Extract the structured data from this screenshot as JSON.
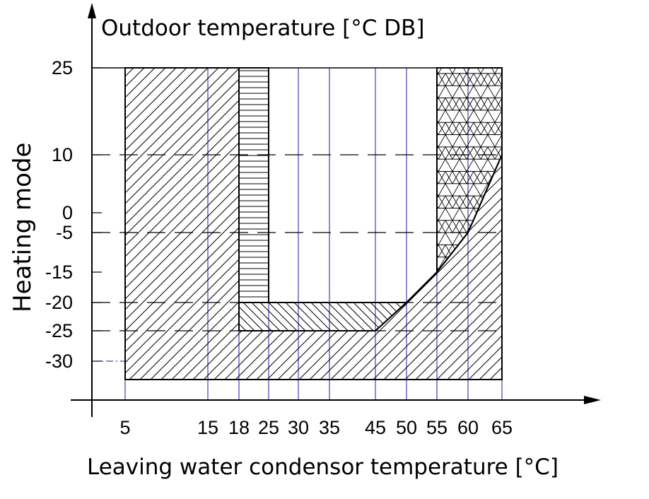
{
  "diagram": {
    "y_axis_title": "Outdoor temperature [°C DB]",
    "x_axis_title": "Leaving water condensor temperature [°C]",
    "mode_label": "Heating mode"
  },
  "chart_data": {
    "type": "area",
    "title": "",
    "xlabel": "Leaving water condensor temperature [°C]",
    "ylabel": "Outdoor temperature [°C DB]",
    "x_ticks": [
      "5",
      "15",
      "18",
      "25",
      "30",
      "35",
      "45",
      "50",
      "55",
      "60",
      "65"
    ],
    "y_ticks": [
      "25",
      "10",
      "0",
      "-5",
      "-15",
      "-20",
      "-25",
      "-30"
    ],
    "regions": [
      {
        "pattern": "diagonal-hatch",
        "polygon": [
          [
            5,
            25
          ],
          [
            18,
            25
          ],
          [
            18,
            -25
          ],
          [
            45,
            -25
          ],
          [
            50,
            -20
          ],
          [
            55,
            -15
          ],
          [
            60,
            -5
          ],
          [
            65,
            10
          ],
          [
            65,
            -35
          ],
          [
            5,
            -35
          ]
        ]
      },
      {
        "pattern": "horizontal-hatch",
        "polygon": [
          [
            18,
            25
          ],
          [
            25,
            25
          ],
          [
            25,
            -20
          ],
          [
            18,
            -20
          ]
        ]
      },
      {
        "pattern": "back-diagonal-hatch",
        "polygon": [
          [
            18,
            -20
          ],
          [
            50,
            -20
          ],
          [
            45,
            -25
          ],
          [
            18,
            -25
          ]
        ]
      },
      {
        "pattern": "triangle-lattice",
        "polygon": [
          [
            55,
            25
          ],
          [
            65,
            25
          ],
          [
            65,
            10
          ],
          [
            60,
            -5
          ],
          [
            55,
            -15
          ]
        ]
      }
    ],
    "dashed_reference_lines": [
      10,
      -5,
      -20,
      -25
    ],
    "colors": {
      "outline": "#000000",
      "guides": "#1a1aa0"
    }
  }
}
